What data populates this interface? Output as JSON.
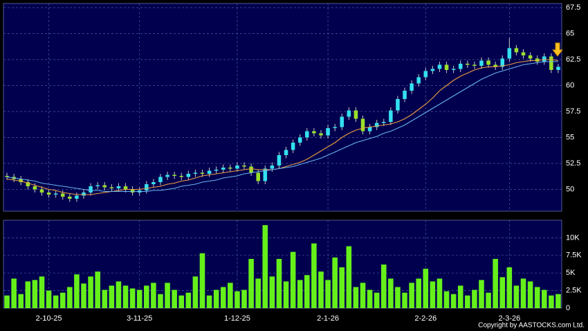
{
  "chart_data": [
    {
      "type": "candlestick",
      "categories": [
        null,
        null,
        null,
        null,
        null,
        null,
        "2-10-25",
        null,
        null,
        null,
        null,
        null,
        null,
        null,
        null,
        null,
        null,
        null,
        null,
        "3-11-25",
        null,
        null,
        null,
        null,
        null,
        null,
        null,
        null,
        null,
        null,
        null,
        null,
        null,
        "1-12-25",
        null,
        null,
        null,
        null,
        null,
        null,
        null,
        null,
        null,
        null,
        null,
        null,
        "2-1-26",
        null,
        null,
        null,
        null,
        null,
        null,
        null,
        null,
        null,
        null,
        null,
        null,
        null,
        "2-2-26",
        null,
        null,
        null,
        null,
        null,
        null,
        null,
        null,
        null,
        null,
        null,
        "2-3-26",
        null,
        null,
        null,
        null,
        null,
        null,
        null
      ],
      "open": [
        51.3,
        51.2,
        51.0,
        50.7,
        50.3,
        50.0,
        49.7,
        49.5,
        49.6,
        49.3,
        49.1,
        49.4,
        49.7,
        50.3,
        50.4,
        50.2,
        50.1,
        50.3,
        50.0,
        49.7,
        49.9,
        50.5,
        50.7,
        51.2,
        51.4,
        51.3,
        51.2,
        51.5,
        51.6,
        51.5,
        51.8,
        51.9,
        52.1,
        52.0,
        52.3,
        52.2,
        51.6,
        50.8,
        52.0,
        52.3,
        53.3,
        53.8,
        54.5,
        55.0,
        55.6,
        55.4,
        55.2,
        55.9,
        56.0,
        57.0,
        57.6,
        56.8,
        55.6,
        56.0,
        56.4,
        56.5,
        57.6,
        58.7,
        59.5,
        60.2,
        60.8,
        61.4,
        61.6,
        62.0,
        61.5,
        61.6,
        62.1,
        62.0,
        61.9,
        62.4,
        62.0,
        61.8,
        62.6,
        63.6,
        63.2,
        62.9,
        62.6,
        62.3,
        62.8,
        61.5
      ],
      "high": [
        51.6,
        51.5,
        51.3,
        51.0,
        50.6,
        50.3,
        50.0,
        49.9,
        49.9,
        49.6,
        49.7,
        50.0,
        50.6,
        50.7,
        50.7,
        50.5,
        50.6,
        50.6,
        50.3,
        50.2,
        50.8,
        51.0,
        51.5,
        51.7,
        51.7,
        51.6,
        51.8,
        51.9,
        51.9,
        52.1,
        52.2,
        52.4,
        52.4,
        52.6,
        52.6,
        52.5,
        51.9,
        52.3,
        52.6,
        53.6,
        54.1,
        54.8,
        55.3,
        55.9,
        55.9,
        55.7,
        56.2,
        56.3,
        57.3,
        57.9,
        57.9,
        57.1,
        56.3,
        56.7,
        56.8,
        57.9,
        59.0,
        59.8,
        60.5,
        61.1,
        61.7,
        61.9,
        62.3,
        62.3,
        61.9,
        62.4,
        62.4,
        62.3,
        62.7,
        62.7,
        62.3,
        62.9,
        64.6,
        63.9,
        63.5,
        63.2,
        62.9,
        63.1,
        63.1,
        62.1
      ],
      "low": [
        50.9,
        50.7,
        50.4,
        50.0,
        49.7,
        49.4,
        49.2,
        49.2,
        49.0,
        48.8,
        48.8,
        49.1,
        49.4,
        50.0,
        49.9,
        49.8,
        49.8,
        49.7,
        49.4,
        49.4,
        49.6,
        50.2,
        50.4,
        50.9,
        51.0,
        50.9,
        50.9,
        51.2,
        51.2,
        51.2,
        51.5,
        51.6,
        51.7,
        51.7,
        51.9,
        51.3,
        50.5,
        50.5,
        51.7,
        52.0,
        53.0,
        53.5,
        54.2,
        54.7,
        55.1,
        54.9,
        54.9,
        55.6,
        55.7,
        56.7,
        56.5,
        55.3,
        55.3,
        55.7,
        56.1,
        56.2,
        57.3,
        58.4,
        59.2,
        59.9,
        60.5,
        61.1,
        61.3,
        61.2,
        61.2,
        61.3,
        61.7,
        61.6,
        61.6,
        61.7,
        61.5,
        61.5,
        62.3,
        62.9,
        62.6,
        62.3,
        62.0,
        62.0,
        61.2,
        61.2
      ],
      "close": [
        51.2,
        51.0,
        50.7,
        50.3,
        50.0,
        49.7,
        49.5,
        49.6,
        49.3,
        49.1,
        49.4,
        49.7,
        50.3,
        50.4,
        50.2,
        50.1,
        50.3,
        50.0,
        49.7,
        49.9,
        50.5,
        50.7,
        51.2,
        51.4,
        51.3,
        51.2,
        51.5,
        51.6,
        51.5,
        51.8,
        51.9,
        52.1,
        52.0,
        52.3,
        52.2,
        51.6,
        50.8,
        52.0,
        52.3,
        53.3,
        53.8,
        54.5,
        55.0,
        55.6,
        55.4,
        55.2,
        55.9,
        56.0,
        57.0,
        57.6,
        56.8,
        55.6,
        56.0,
        56.4,
        56.5,
        57.6,
        58.7,
        59.5,
        60.2,
        60.8,
        61.4,
        61.6,
        62.0,
        61.5,
        61.6,
        62.1,
        62.0,
        61.9,
        62.4,
        62.0,
        61.8,
        62.6,
        63.6,
        63.2,
        62.9,
        62.6,
        62.3,
        62.8,
        61.5,
        61.8
      ],
      "up_color": "#33e0f0",
      "down_color": "#9ae02a",
      "series": [
        {
          "color": "#f0a040",
          "values": [
            51.0,
            50.9,
            50.8,
            50.6,
            50.4,
            50.2,
            50.0,
            49.9,
            49.7,
            49.6,
            49.5,
            49.5,
            49.5,
            49.6,
            49.7,
            49.8,
            49.9,
            50.0,
            50.0,
            50.0,
            50.1,
            50.2,
            50.3,
            50.5,
            50.6,
            50.8,
            50.9,
            51.1,
            51.3,
            51.4,
            51.5,
            51.6,
            51.7,
            51.8,
            51.9,
            52.0,
            51.9,
            51.9,
            51.9,
            52.0,
            52.2,
            52.4,
            52.6,
            52.9,
            53.3,
            53.7,
            54.1,
            54.5,
            55.0,
            55.4,
            55.7,
            55.9,
            56.0,
            56.1,
            56.2,
            56.3,
            56.5,
            56.8,
            57.2,
            57.7,
            58.2,
            58.8,
            59.5,
            60.0,
            60.5,
            60.9,
            61.2,
            61.5,
            61.7,
            61.8,
            61.8,
            61.9,
            62.0,
            62.2,
            62.3,
            62.4,
            62.4,
            62.5,
            62.5,
            62.4
          ]
        },
        {
          "color": "#6ab4f0",
          "values": [
            51.2,
            51.1,
            51.0,
            50.9,
            50.8,
            50.6,
            50.5,
            50.4,
            50.3,
            50.2,
            50.1,
            50.0,
            49.9,
            49.9,
            49.8,
            49.8,
            49.8,
            49.8,
            49.8,
            49.8,
            49.8,
            49.9,
            49.9,
            50.0,
            50.1,
            50.3,
            50.4,
            50.5,
            50.7,
            50.8,
            50.9,
            51.1,
            51.2,
            51.3,
            51.5,
            51.6,
            51.7,
            51.8,
            51.9,
            52.0,
            52.1,
            52.2,
            52.4,
            52.6,
            52.8,
            53.0,
            53.3,
            53.6,
            53.9,
            54.2,
            54.5,
            54.7,
            54.9,
            55.1,
            55.4,
            55.6,
            55.9,
            56.2,
            56.6,
            57.0,
            57.4,
            57.8,
            58.2,
            58.6,
            59.0,
            59.4,
            59.8,
            60.2,
            60.6,
            60.9,
            61.2,
            61.4,
            61.6,
            61.8,
            62.0,
            62.1,
            62.2,
            62.3,
            62.3,
            62.3
          ]
        }
      ],
      "ylim": [
        47.9,
        67.9
      ],
      "yticks": [
        50,
        52.5,
        55,
        57.5,
        60,
        62.5,
        65,
        67.5
      ],
      "grid": true
    },
    {
      "type": "bar",
      "color": "#66f01a",
      "values": [
        1800,
        4200,
        2000,
        3800,
        4000,
        4500,
        2500,
        1800,
        2200,
        3000,
        4800,
        3500,
        4500,
        5200,
        2600,
        3200,
        3800,
        3200,
        2800,
        2600,
        3200,
        3600,
        2000,
        3600,
        2600,
        1800,
        2200,
        4500,
        7800,
        1800,
        2600,
        3000,
        3600,
        2400,
        2600,
        7000,
        4200,
        11800,
        4500,
        7000,
        3800,
        8000,
        4000,
        4700,
        9200,
        5200,
        4000,
        7200,
        5800,
        8800,
        3000,
        3600,
        2600,
        2200,
        6200,
        4200,
        3000,
        2200,
        3600,
        4200,
        5600,
        3800,
        4200,
        2400,
        2000,
        3200,
        1800,
        2600,
        4000,
        2200,
        7000,
        4400,
        5800,
        3200,
        4200,
        3800,
        3000,
        2600,
        1800,
        2000
      ],
      "ylim": [
        0,
        12500
      ],
      "yticks": [
        0,
        {
          "value": 2500,
          "label": "2.5K"
        },
        {
          "value": 5000,
          "label": "5K"
        },
        {
          "value": 7500,
          "label": "7.5K"
        },
        {
          "value": 10000,
          "label": "10K"
        }
      ],
      "grid": true,
      "footnote": "Copyright by AASTOCKS.com Ltd."
    }
  ]
}
